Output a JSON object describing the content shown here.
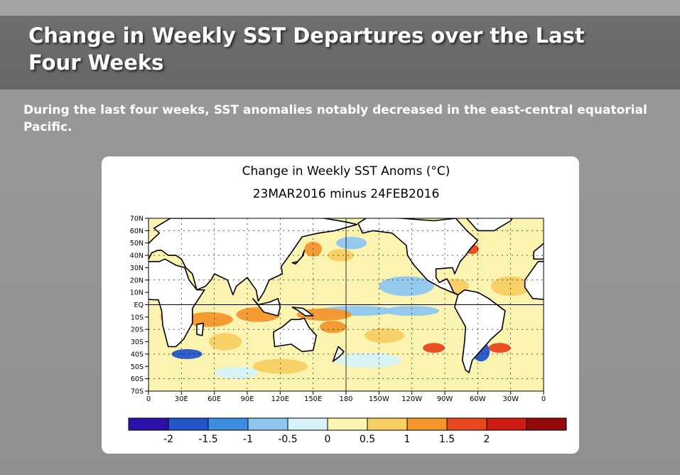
{
  "slide": {
    "title": "Change in Weekly SST Departures over the Last Four Weeks",
    "subtitle": "During the last four weeks, SST anomalies notably decreased in the east-central equatorial Pacific."
  },
  "map": {
    "title": "Change in Weekly SST Anoms (°C)",
    "subtitle": "23MAR2016 minus 24FEB2016",
    "lat_labels": [
      "70N",
      "60N",
      "50N",
      "40N",
      "30N",
      "20N",
      "10N",
      "EQ",
      "10S",
      "20S",
      "30S",
      "40S",
      "50S",
      "60S",
      "70S"
    ],
    "lon_labels": [
      "0",
      "30E",
      "60E",
      "90E",
      "120E",
      "150E",
      "180",
      "150W",
      "120W",
      "90W",
      "60W",
      "30W",
      "0"
    ],
    "colorbar": {
      "colors": [
        "#2a0fa8",
        "#2355c9",
        "#3c8fe0",
        "#8fc6f0",
        "#d6f2f8",
        "#fbf3b0",
        "#f7cf63",
        "#f4962c",
        "#e8481d",
        "#cf1c12",
        "#950b0b"
      ],
      "labels": [
        "-2",
        "-1.5",
        "-1",
        "-0.5",
        "0",
        "0.5",
        "1",
        "1.5",
        "2"
      ]
    }
  }
}
